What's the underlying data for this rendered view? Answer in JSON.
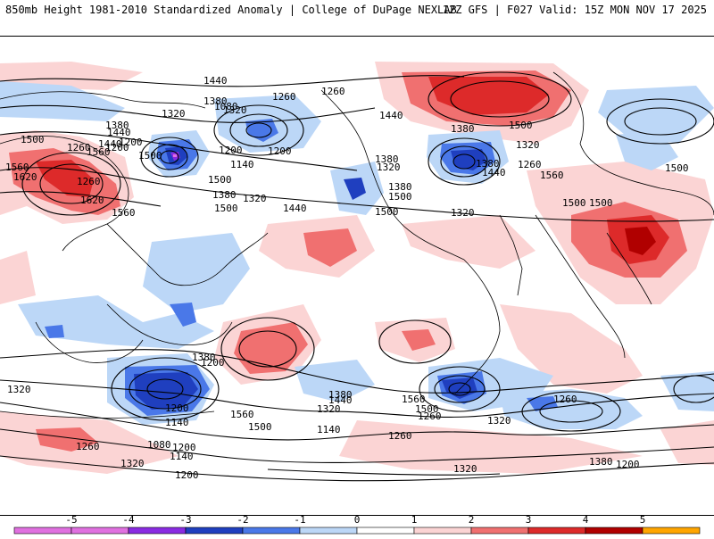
{
  "header": {
    "title_left": "850mb Height 1981-2010 Standardized Anomaly | College of DuPage NEXLAB",
    "title_right": "12Z GFS | F027 Valid: 15Z MON NOV 17 2025"
  },
  "colors": {
    "neg5": "#e070e0",
    "neg4": "#8a2be2",
    "neg3": "#1f3fbf",
    "neg2": "#4a78e8",
    "neg1": "#bcd7f7",
    "pos1": "#fbd4d4",
    "pos2": "#f07070",
    "pos3": "#dd2a2a",
    "pos4": "#b00000",
    "pos5": "#ffa500",
    "contour": "#000000",
    "land": "#ffffff"
  },
  "contour_labels": [
    "1440",
    "1380",
    "1260",
    "1200",
    "1320",
    "1380",
    "1320",
    "1260",
    "1200",
    "1440",
    "1500",
    "1560",
    "1500",
    "1440",
    "1560",
    "1620",
    "1620",
    "1560",
    "1500",
    "1380",
    "1320",
    "1500",
    "1440",
    "1380",
    "1500",
    "1320",
    "1500",
    "1560",
    "1500",
    "1500",
    "1500",
    "1440",
    "1500",
    "1380",
    "1440",
    "1380",
    "1260",
    "1320",
    "1380",
    "1320",
    "1260",
    "1200",
    "1080",
    "1140",
    "1260",
    "1200",
    "1380",
    "1320",
    "1200",
    "1140",
    "1200",
    "1440",
    "1560",
    "1500",
    "1320",
    "1380",
    "1140",
    "1260",
    "1080",
    "1200",
    "1320",
    "1260",
    "1200",
    "1140",
    "1260",
    "1320",
    "1320",
    "1560",
    "1500",
    "1380",
    "1260",
    "1200"
  ],
  "colorbar": {
    "ticks": [
      "-5",
      "-4",
      "-3",
      "-2",
      "-1",
      "0",
      "1",
      "2",
      "3",
      "4",
      "5"
    ]
  }
}
